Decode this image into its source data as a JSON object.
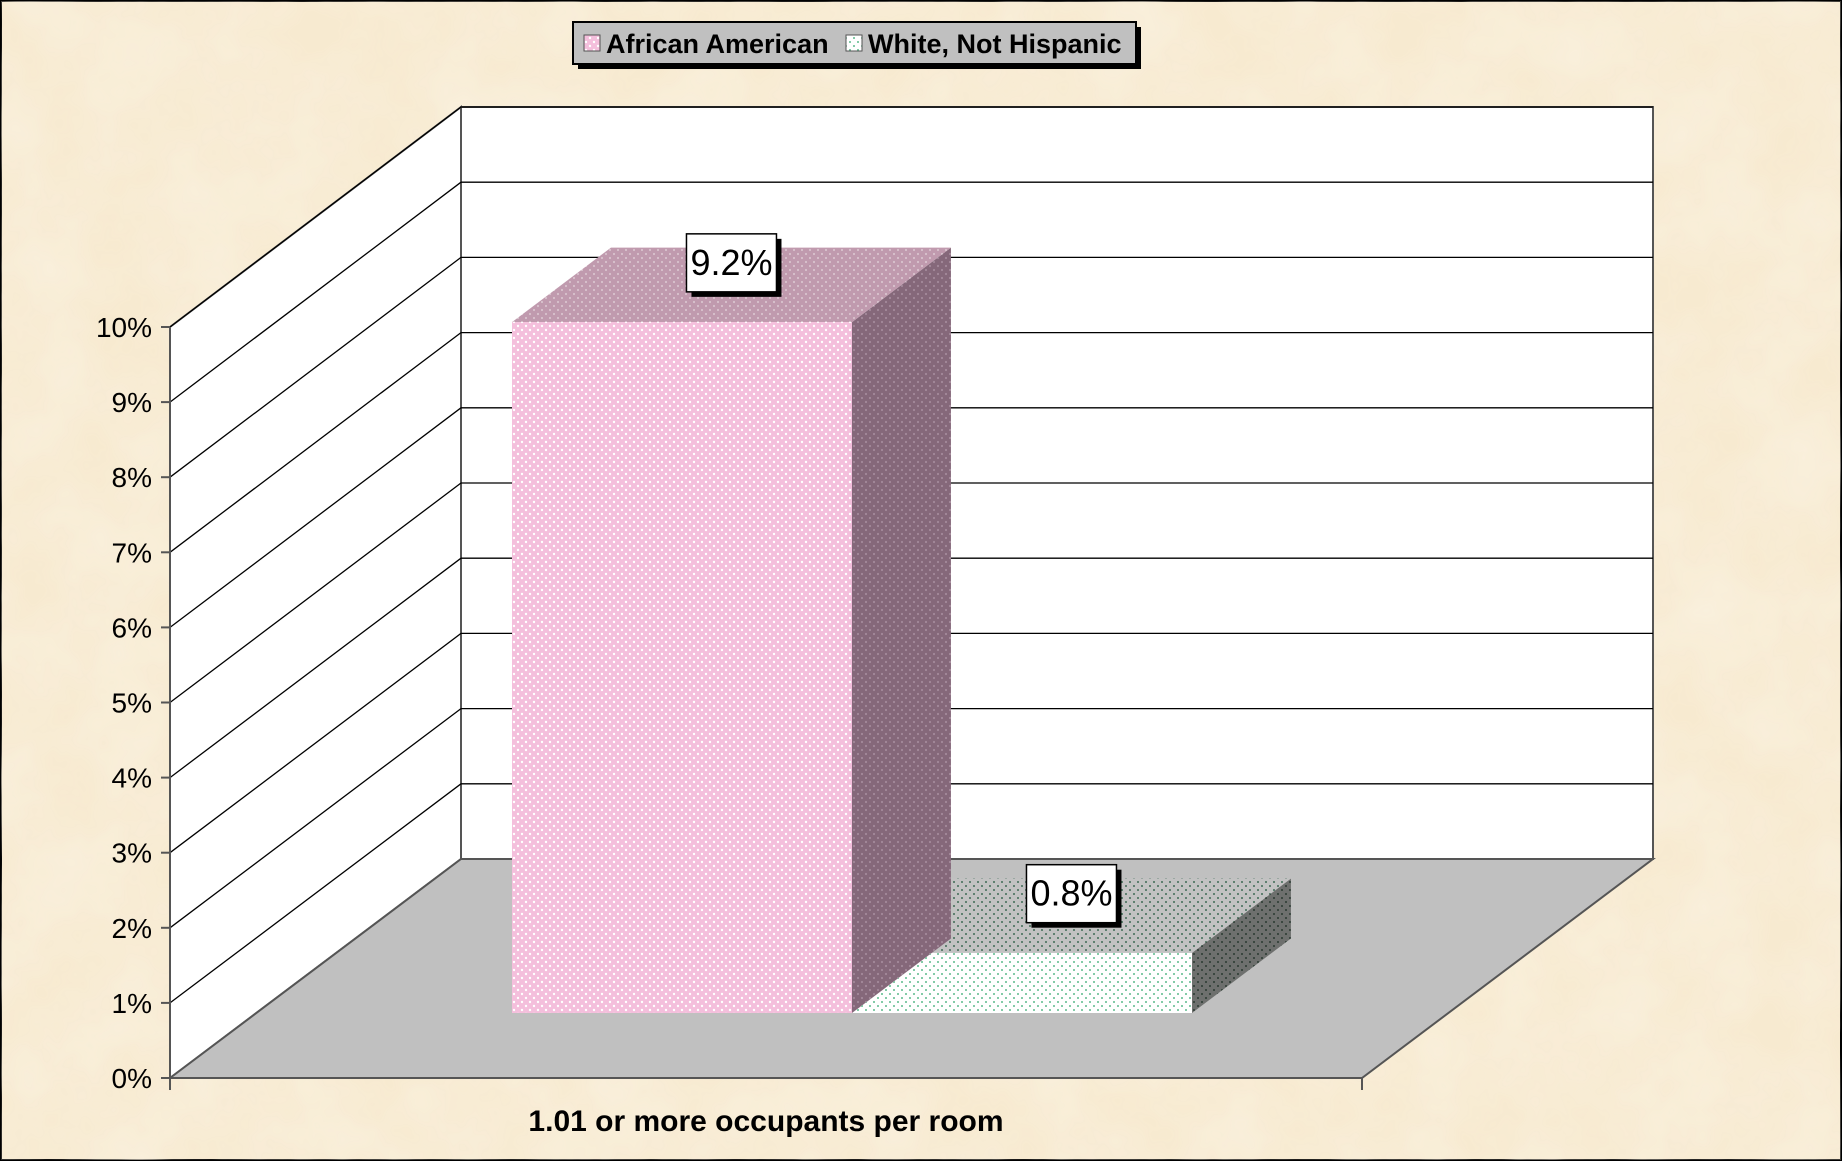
{
  "chart_data": {
    "type": "bar",
    "bar_style": "3d",
    "categories": [
      "1.01 or more occupants per room"
    ],
    "series": [
      {
        "name": "African American",
        "values": [
          9.2
        ],
        "data_labels": [
          "9.2%"
        ]
      },
      {
        "name": "White, Not Hispanic",
        "values": [
          0.8
        ],
        "data_labels": [
          "0.8%"
        ]
      }
    ],
    "y_ticks": [
      "0%",
      "1%",
      "2%",
      "3%",
      "4%",
      "5%",
      "6%",
      "7%",
      "8%",
      "9%",
      "10%"
    ],
    "ylim": [
      0,
      10
    ],
    "grid": true,
    "legend_position": "top-center",
    "colors": {
      "background": "#f7ead0",
      "african_american_front": "#f7c8e2",
      "african_american_top": "#c4a3b4",
      "african_american_side": "#8a6c7b",
      "white_front": "#f3fbf6",
      "white_top": "#b0b3b0",
      "white_side": "#6c736f",
      "floor": "#c0c0c0",
      "walls": "#ffffff",
      "gridline": "#000000"
    }
  }
}
